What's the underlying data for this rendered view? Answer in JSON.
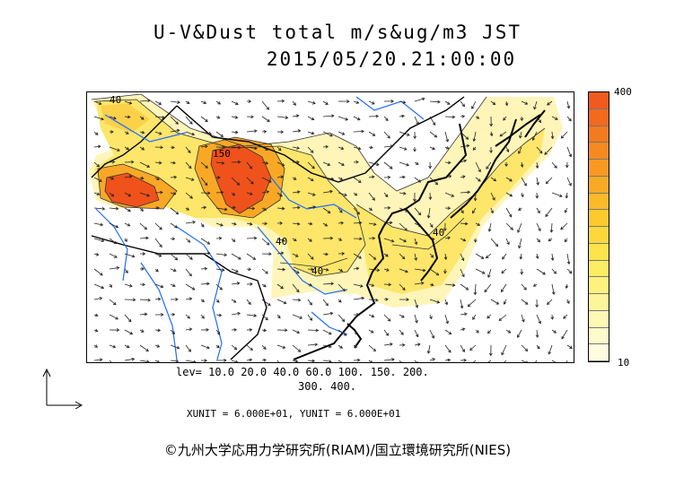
{
  "header": {
    "title": "U-V&Dust total m/s&ug/m3 JST",
    "datetime": "2015/05/20.21:00:00"
  },
  "map": {
    "contour_labels": [
      "40",
      "150",
      "40",
      "40",
      "40"
    ],
    "colors": {
      "ocean_lines": "#1e6cff",
      "coast": "#000000",
      "wind_arrows": "#222222"
    }
  },
  "colorbar": {
    "max_label": "400",
    "min_label": "10",
    "colors": [
      "#f05a1e",
      "#f26a1e",
      "#f47a1f",
      "#f68a20",
      "#f89a22",
      "#f9aa24",
      "#fbba28",
      "#fcca2e",
      "#fdd83a",
      "#fde34c",
      "#fded62",
      "#fef27e",
      "#fef59a",
      "#fef8b4",
      "#fefacb",
      "#fffce0"
    ]
  },
  "legend": {
    "levels_line1": "lev= 10.0 20.0 40.0 60.0 100. 150. 200.",
    "levels_line2": "300. 400."
  },
  "units": {
    "text": "XUNIT = 6.000E+01, YUNIT = 6.000E+01"
  },
  "credit": {
    "text": "©九州大学応用力学研究所(RIAM)/国立環境研究所(NIES)"
  }
}
